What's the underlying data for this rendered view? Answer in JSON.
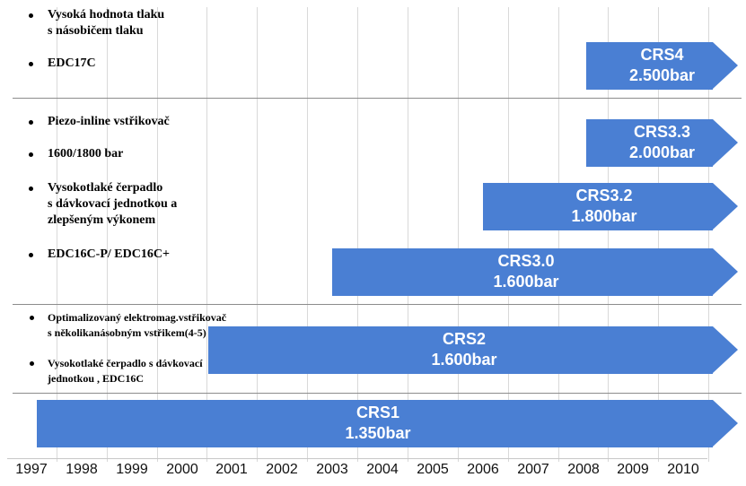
{
  "years": [
    "1997",
    "1998",
    "1999",
    "2000",
    "2001",
    "2002",
    "2003",
    "2004",
    "2005",
    "2006",
    "2007",
    "2008",
    "2009",
    "2010"
  ],
  "arrows": [
    {
      "name": "CRS4",
      "pressure": "2.500bar",
      "start": "2008",
      "color": "#4a7fd3"
    },
    {
      "name": "CRS3.3",
      "pressure": "2.000bar",
      "start": "2008",
      "color": "#4a7fd3"
    },
    {
      "name": "CRS3.2",
      "pressure": "1.800bar",
      "start": "2006",
      "color": "#4a7fd3"
    },
    {
      "name": "CRS3.0",
      "pressure": "1.600bar",
      "start": "2003",
      "color": "#4a7fd3"
    },
    {
      "name": "CRS2",
      "pressure": "1.600bar",
      "start": "2001",
      "color": "#4a7fd3"
    },
    {
      "name": "CRS1",
      "pressure": "1.350bar",
      "start": "1997",
      "color": "#4a7fd3"
    }
  ],
  "notes": {
    "group1": {
      "n1": {
        "line1": "Vysoká hodnota tlaku",
        "line2": "s násobičem tlaku"
      },
      "n2": "EDC17C"
    },
    "group2": {
      "n1": "Piezo-inline vstřikovač",
      "n2": "1600/1800 bar",
      "n3": {
        "line1": "Vysokotlaké čerpadlo",
        "line2": "s dávkovací jednotkou a",
        "line3": "zlepšeným výkonem"
      },
      "n4": "EDC16C-P/ EDC16C+"
    },
    "group3": {
      "n1": {
        "line1": "Optimalizovaný elektromag.vstřikovač",
        "line2": "s několikanásobným vstřikem(4-5)"
      },
      "n2": {
        "line1": "Vysokotlaké čerpadlo s dávkovací",
        "line2": "jednotkou , EDC16C"
      }
    }
  }
}
